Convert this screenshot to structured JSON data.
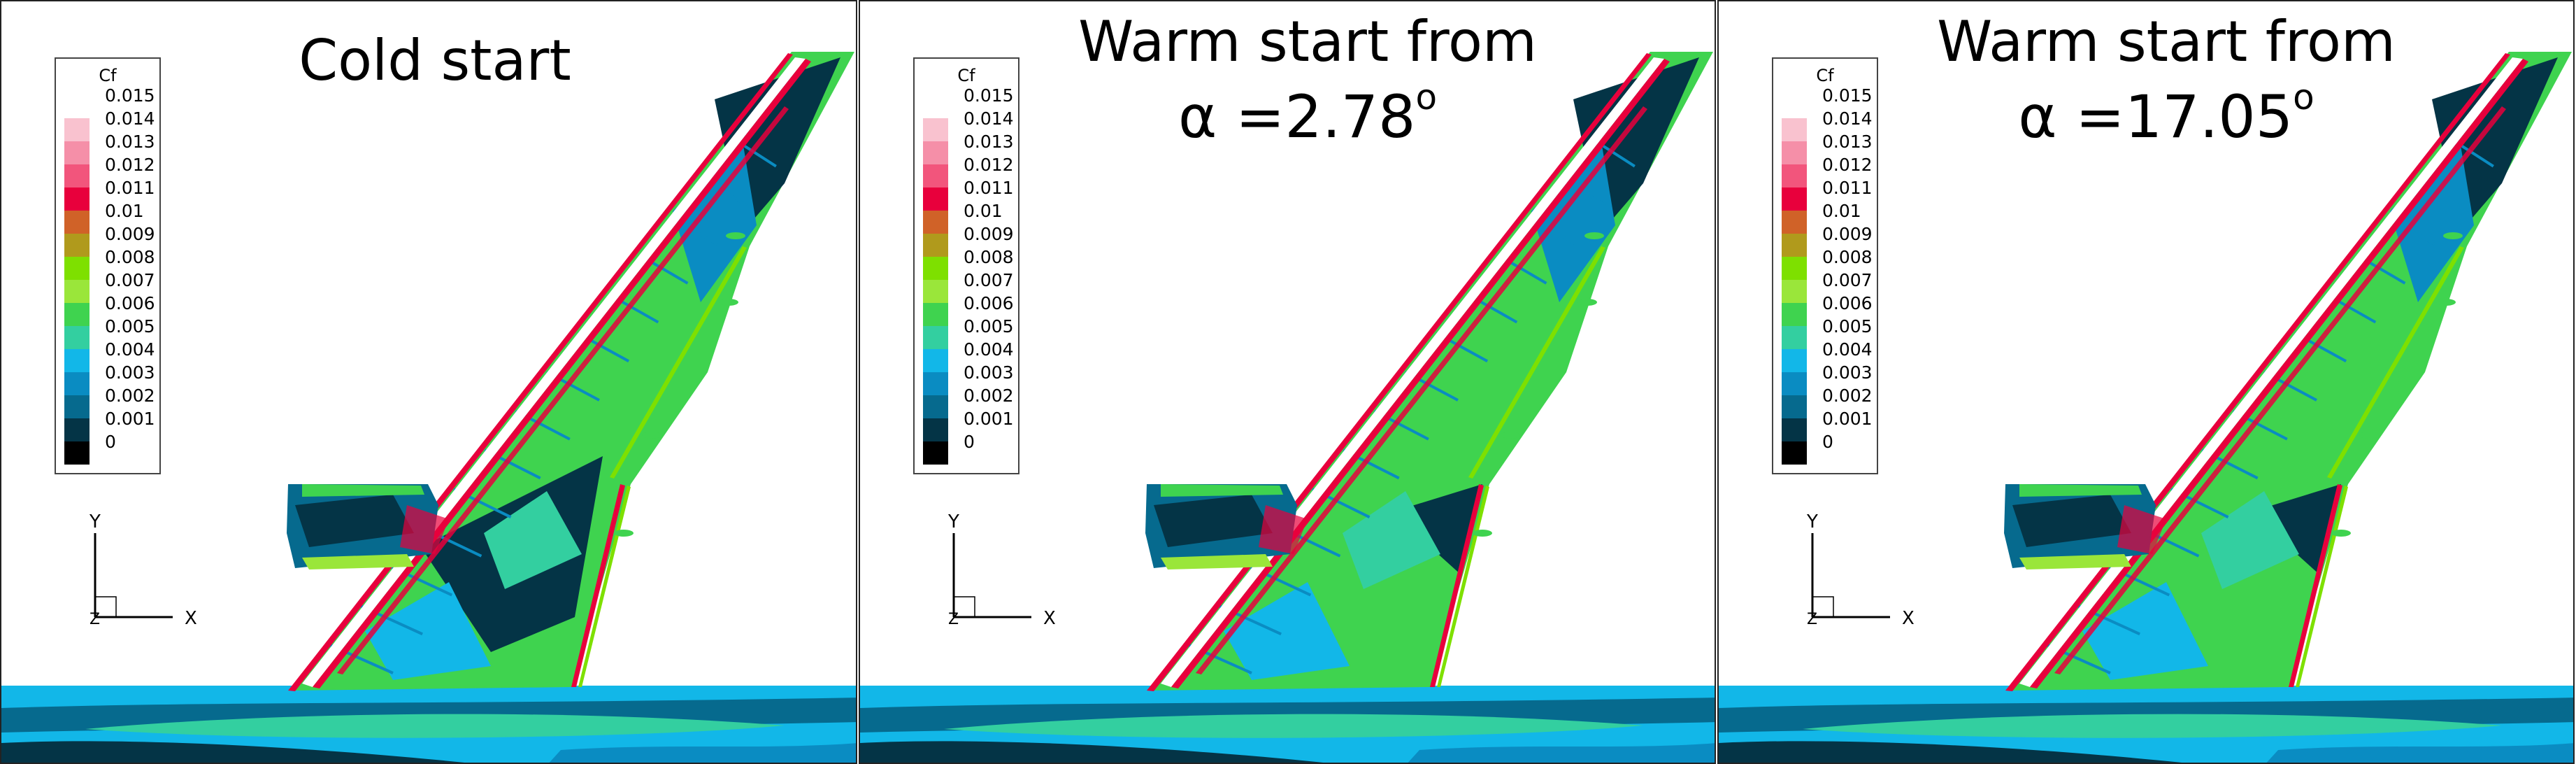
{
  "legend": {
    "title": "Cf",
    "levels": [
      "0.015",
      "0.014",
      "0.013",
      "0.012",
      "0.011",
      "0.01",
      "0.009",
      "0.008",
      "0.007",
      "0.006",
      "0.005",
      "0.004",
      "0.003",
      "0.002",
      "0.001",
      "0"
    ],
    "colors": [
      "#ffffff",
      "#f9c2cf",
      "#f58fa8",
      "#f2557c",
      "#e8003c",
      "#d06228",
      "#b09a1c",
      "#7ee000",
      "#9ae63a",
      "#3fd34f",
      "#33cfa0",
      "#12b7e8",
      "#0a8cc2",
      "#066a8e",
      "#043446",
      "#000000"
    ]
  },
  "axes": {
    "y_label": "Y",
    "x_label": "X",
    "z_label": "Z"
  },
  "panels": [
    {
      "title_line1": "Cold start",
      "title_line2_prefix": "",
      "title_value": "",
      "degree": ""
    },
    {
      "title_line1": "Warm start from",
      "title_line2_prefix": "α =",
      "title_value": "2.78",
      "degree": "o"
    },
    {
      "title_line1": "Warm start from",
      "title_line2_prefix": "α =",
      "title_value": "17.05",
      "degree": "o"
    }
  ]
}
